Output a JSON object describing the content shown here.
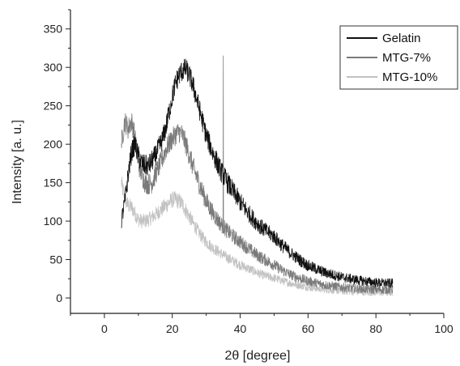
{
  "chart_data": {
    "type": "line",
    "xlabel": "2θ [degree]",
    "ylabel": "Intensity [a. u.]",
    "xlim": [
      -10,
      100
    ],
    "ylim": [
      -20,
      375
    ],
    "xticks": [
      0,
      20,
      40,
      60,
      80,
      100
    ],
    "xtick_labels": [
      "0",
      "20",
      "40",
      "60",
      "80",
      "100"
    ],
    "yticks": [
      0,
      50,
      100,
      150,
      200,
      250,
      300,
      350
    ],
    "ytick_labels": [
      "0",
      "50",
      "100",
      "150",
      "200",
      "250",
      "300",
      "350"
    ],
    "grid": false,
    "legend_position": "top-right",
    "series": [
      {
        "name": "Gelatin",
        "color": "#111111",
        "x": [
          5,
          6,
          7,
          8,
          9,
          10,
          11,
          12,
          13,
          14,
          15,
          16,
          17,
          18,
          19,
          20,
          21,
          22,
          23,
          24,
          25,
          26,
          27,
          28,
          29,
          30,
          32,
          34,
          36,
          38,
          40,
          42,
          44,
          46,
          48,
          50,
          52,
          55,
          58,
          60,
          65,
          70,
          75,
          80,
          85
        ],
        "y": [
          100,
          125,
          160,
          190,
          200,
          185,
          175,
          172,
          172,
          178,
          185,
          195,
          205,
          220,
          240,
          262,
          280,
          290,
          296,
          298,
          290,
          278,
          262,
          245,
          228,
          212,
          188,
          168,
          152,
          138,
          125,
          113,
          102,
          93,
          86,
          80,
          70,
          58,
          48,
          42,
          33,
          27,
          23,
          20,
          19
        ],
        "noise": 14
      },
      {
        "name": "MTG-7%",
        "color": "#7a7a7a",
        "x": [
          5,
          6,
          7,
          8,
          9,
          10,
          11,
          12,
          13,
          14,
          15,
          16,
          17,
          18,
          19,
          20,
          21,
          22,
          23,
          24,
          25,
          26,
          27,
          28,
          29,
          30,
          32,
          34,
          36,
          38,
          40,
          42,
          44,
          46,
          48,
          50,
          52,
          55,
          58,
          60,
          65,
          70,
          75,
          80,
          85
        ],
        "y": [
          200,
          230,
          220,
          230,
          210,
          175,
          160,
          150,
          148,
          150,
          160,
          170,
          180,
          192,
          200,
          207,
          213,
          216,
          212,
          200,
          186,
          172,
          160,
          148,
          137,
          126,
          110,
          98,
          88,
          80,
          73,
          66,
          59,
          53,
          48,
          43,
          37,
          30,
          25,
          22,
          17,
          14,
          12,
          11,
          11
        ],
        "noise": 14,
        "spike": {
          "x": 35,
          "y": 315
        }
      },
      {
        "name": "MTG-10%",
        "color": "#c2c2c2",
        "x": [
          5,
          6,
          7,
          8,
          9,
          10,
          11,
          12,
          13,
          14,
          15,
          16,
          17,
          18,
          19,
          20,
          21,
          22,
          23,
          24,
          25,
          26,
          27,
          28,
          29,
          30,
          32,
          34,
          36,
          38,
          40,
          42,
          44,
          46,
          48,
          50,
          52,
          55,
          58,
          60,
          65,
          70,
          75,
          80,
          85
        ],
        "y": [
          150,
          130,
          120,
          118,
          110,
          102,
          100,
          100,
          102,
          105,
          108,
          112,
          116,
          120,
          124,
          128,
          128,
          126,
          122,
          114,
          106,
          98,
          91,
          84,
          78,
          73,
          65,
          59,
          53,
          48,
          43,
          39,
          35,
          31,
          28,
          26,
          23,
          19,
          16,
          14,
          11,
          9,
          8,
          7,
          7
        ],
        "noise": 12
      }
    ]
  }
}
